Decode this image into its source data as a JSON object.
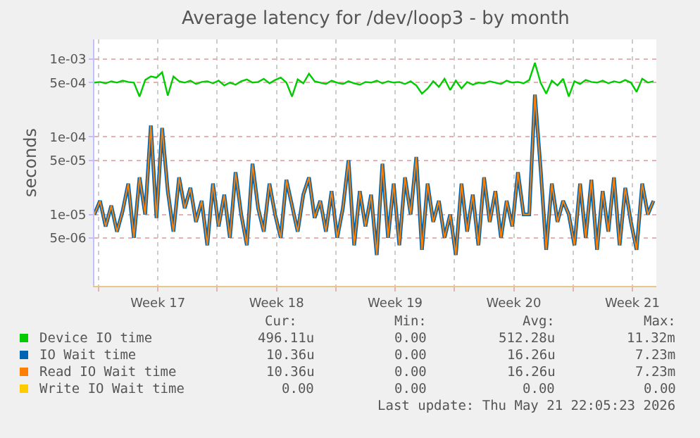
{
  "chart_data": {
    "type": "line",
    "title": "Average latency for /dev/loop3 - by month",
    "ylabel": "seconds",
    "log": "y",
    "grid": true,
    "legend": "bottom",
    "marker": "none",
    "line_style": "solid",
    "xlim": [
      "2026-04-19T18:00",
      "2026-05-22T22:00"
    ],
    "xticks": [
      {
        "value": "2026-04-20T00:00",
        "label": null
      },
      {
        "value": "2026-04-23T12:00",
        "label": "Week 17"
      },
      {
        "value": "2026-04-27T00:00",
        "label": null
      },
      {
        "value": "2026-04-30T12:00",
        "label": "Week 18"
      },
      {
        "value": "2026-05-04T00:00",
        "label": null
      },
      {
        "value": "2026-05-07T12:00",
        "label": "Week 19"
      },
      {
        "value": "2026-05-11T00:00",
        "label": null
      },
      {
        "value": "2026-05-14T12:00",
        "label": "Week 20"
      },
      {
        "value": "2026-05-18T00:00",
        "label": null
      },
      {
        "value": "2026-05-21T12:00",
        "label": "Week 21"
      }
    ],
    "ylim": [
      1.2e-06,
      0.0018
    ],
    "yticks": [
      {
        "value": 5e-06,
        "label": "5e-06"
      },
      {
        "value": 1e-05,
        "label": "1e-05"
      },
      {
        "value": 5e-05,
        "label": "5e-05"
      },
      {
        "value": 0.0001,
        "label": "1e-04"
      },
      {
        "value": 0.0005,
        "label": "5e-04"
      },
      {
        "value": 0.001,
        "label": "1e-03"
      }
    ],
    "x": [
      "2026-04-19T18:00",
      "2026-04-20T02:00",
      "2026-04-20T10:00",
      "2026-04-20T18:00",
      "2026-04-21T02:00",
      "2026-04-21T10:00",
      "2026-04-21T18:00",
      "2026-04-22T02:00",
      "2026-04-22T10:00",
      "2026-04-22T18:00",
      "2026-04-23T02:00",
      "2026-04-23T10:00",
      "2026-04-23T18:00",
      "2026-04-24T02:00",
      "2026-04-24T10:00",
      "2026-04-24T18:00",
      "2026-04-25T02:00",
      "2026-04-25T10:00",
      "2026-04-25T18:00",
      "2026-04-26T02:00",
      "2026-04-26T10:00",
      "2026-04-26T18:00",
      "2026-04-27T02:00",
      "2026-04-27T10:00",
      "2026-04-27T18:00",
      "2026-04-28T02:00",
      "2026-04-28T10:00",
      "2026-04-28T18:00",
      "2026-04-29T02:00",
      "2026-04-29T10:00",
      "2026-04-29T18:00",
      "2026-04-30T02:00",
      "2026-04-30T10:00",
      "2026-04-30T18:00",
      "2026-05-01T02:00",
      "2026-05-01T10:00",
      "2026-05-01T18:00",
      "2026-05-02T02:00",
      "2026-05-02T10:00",
      "2026-05-02T18:00",
      "2026-05-03T02:00",
      "2026-05-03T10:00",
      "2026-05-03T18:00",
      "2026-05-04T02:00",
      "2026-05-04T10:00",
      "2026-05-04T18:00",
      "2026-05-05T02:00",
      "2026-05-05T10:00",
      "2026-05-05T18:00",
      "2026-05-06T02:00",
      "2026-05-06T10:00",
      "2026-05-06T18:00",
      "2026-05-07T02:00",
      "2026-05-07T10:00",
      "2026-05-07T18:00",
      "2026-05-08T02:00",
      "2026-05-08T10:00",
      "2026-05-08T18:00",
      "2026-05-09T02:00",
      "2026-05-09T10:00",
      "2026-05-09T18:00",
      "2026-05-10T02:00",
      "2026-05-10T10:00",
      "2026-05-10T18:00",
      "2026-05-11T02:00",
      "2026-05-11T10:00",
      "2026-05-11T18:00",
      "2026-05-12T02:00",
      "2026-05-12T10:00",
      "2026-05-12T18:00",
      "2026-05-13T02:00",
      "2026-05-13T10:00",
      "2026-05-13T18:00",
      "2026-05-14T02:00",
      "2026-05-14T10:00",
      "2026-05-14T18:00",
      "2026-05-15T02:00",
      "2026-05-15T10:00",
      "2026-05-15T18:00",
      "2026-05-16T02:00",
      "2026-05-16T10:00",
      "2026-05-16T18:00",
      "2026-05-17T02:00",
      "2026-05-17T10:00",
      "2026-05-17T18:00",
      "2026-05-18T02:00",
      "2026-05-18T10:00",
      "2026-05-18T18:00",
      "2026-05-19T02:00",
      "2026-05-19T10:00",
      "2026-05-19T18:00",
      "2026-05-20T02:00",
      "2026-05-20T10:00",
      "2026-05-20T18:00",
      "2026-05-21T02:00",
      "2026-05-21T10:00",
      "2026-05-21T18:00",
      "2026-05-22T02:00",
      "2026-05-22T10:00",
      "2026-05-22T18:00"
    ],
    "series": [
      {
        "name": "Device IO time",
        "color": "#00cc00",
        "values": [
          0.0005,
          0.00051,
          0.00049,
          0.00052,
          0.0005,
          0.00053,
          0.00051,
          0.0005,
          0.00033,
          0.00054,
          0.0006,
          0.00058,
          0.00068,
          0.00034,
          0.0006,
          0.00052,
          0.0005,
          0.00053,
          0.00048,
          0.00051,
          0.00052,
          0.00049,
          0.00053,
          0.00046,
          0.0005,
          0.00047,
          0.00052,
          0.00055,
          0.0005,
          0.00051,
          0.00056,
          0.00049,
          0.00054,
          0.00058,
          0.0005,
          0.00033,
          0.00055,
          0.00049,
          0.00065,
          0.00052,
          0.0005,
          0.00048,
          0.00053,
          0.0005,
          0.00048,
          0.00052,
          0.00049,
          0.00047,
          0.00051,
          0.0005,
          0.00053,
          0.00049,
          0.00052,
          0.0005,
          0.00051,
          0.00048,
          0.00052,
          0.00046,
          0.00036,
          0.00042,
          0.00052,
          0.00044,
          0.00056,
          0.0004,
          0.00053,
          0.00042,
          0.00051,
          0.00047,
          0.0005,
          0.00049,
          0.00052,
          0.0005,
          0.00048,
          0.00053,
          0.0005,
          0.00051,
          0.00049,
          0.00054,
          0.0009,
          0.0005,
          0.00036,
          0.00053,
          0.00046,
          0.00056,
          0.00033,
          0.00052,
          0.00048,
          0.00054,
          0.00051,
          0.0005,
          0.00053,
          0.00049,
          0.00052,
          0.0005,
          0.00054,
          0.0005,
          0.00038,
          0.00056,
          0.0005,
          0.00052
        ]
      },
      {
        "name": "IO Wait time",
        "color": "#0066b3",
        "values": [
          1e-05,
          1.5e-05,
          7e-06,
          1.3e-05,
          6e-06,
          1.1e-05,
          2.5e-05,
          5e-06,
          3e-05,
          1e-05,
          0.00014,
          9e-06,
          0.00013,
          2e-05,
          6e-06,
          3e-05,
          1.2e-05,
          2.2e-05,
          8e-06,
          1.5e-05,
          4e-06,
          2.5e-05,
          7e-06,
          1.8e-05,
          5e-06,
          3.5e-05,
          1e-05,
          4e-06,
          4.5e-05,
          1.2e-05,
          6e-06,
          2.5e-05,
          1e-05,
          5e-06,
          2.8e-05,
          1.3e-05,
          6e-06,
          1.8e-05,
          3e-05,
          9e-06,
          1.5e-05,
          6e-06,
          2e-05,
          5e-06,
          1.2e-05,
          5e-05,
          4e-06,
          2e-05,
          7e-06,
          1.8e-05,
          3e-06,
          4.5e-05,
          5e-06,
          2.5e-05,
          4e-06,
          3e-05,
          1e-05,
          5.5e-05,
          3.5e-06,
          2.5e-05,
          8e-06,
          1.5e-05,
          5e-06,
          1e-05,
          3e-06,
          2.5e-05,
          6e-06,
          1.8e-05,
          4e-06,
          3e-05,
          8e-06,
          2e-05,
          5e-06,
          1.5e-05,
          7e-06,
          3.5e-05,
          1e-05,
          1e-05,
          0.00035,
          4e-05,
          3.5e-06,
          2.5e-05,
          8e-06,
          1.5e-05,
          1e-05,
          4e-06,
          2.5e-05,
          5e-06,
          2.8e-05,
          3.5e-06,
          2e-05,
          6e-06,
          3e-05,
          4e-06,
          2.2e-05,
          8e-06,
          3.5e-06,
          2.5e-05,
          1e-05,
          1.5e-05
        ]
      },
      {
        "name": "Read IO Wait time",
        "color": "#ff8000",
        "values": [
          1e-05,
          1.5e-05,
          7e-06,
          1.3e-05,
          6e-06,
          1.1e-05,
          2.5e-05,
          5e-06,
          3e-05,
          1e-05,
          0.00014,
          9e-06,
          0.00013,
          2e-05,
          6e-06,
          3e-05,
          1.2e-05,
          2.2e-05,
          8e-06,
          1.5e-05,
          4e-06,
          2.5e-05,
          7e-06,
          1.8e-05,
          5e-06,
          3.5e-05,
          1e-05,
          4e-06,
          4.5e-05,
          1.2e-05,
          6e-06,
          2.5e-05,
          1e-05,
          5e-06,
          2.8e-05,
          1.3e-05,
          6e-06,
          1.8e-05,
          3e-05,
          9e-06,
          1.5e-05,
          6e-06,
          2e-05,
          5e-06,
          1.2e-05,
          5e-05,
          4e-06,
          2e-05,
          7e-06,
          1.8e-05,
          3e-06,
          4.5e-05,
          5e-06,
          2.5e-05,
          4e-06,
          3e-05,
          1e-05,
          5.5e-05,
          3.5e-06,
          2.5e-05,
          8e-06,
          1.5e-05,
          5e-06,
          1e-05,
          3e-06,
          2.5e-05,
          6e-06,
          1.8e-05,
          4e-06,
          3e-05,
          8e-06,
          2e-05,
          5e-06,
          1.5e-05,
          7e-06,
          3.5e-05,
          1e-05,
          1e-05,
          0.00035,
          4e-05,
          3.5e-06,
          2.5e-05,
          8e-06,
          1.5e-05,
          1e-05,
          4e-06,
          2.5e-05,
          5e-06,
          2.8e-05,
          3.5e-06,
          2e-05,
          6e-06,
          3e-05,
          4e-06,
          2.2e-05,
          8e-06,
          3.5e-06,
          2.5e-05,
          1e-05,
          1.5e-05
        ]
      },
      {
        "name": "Write IO Wait time",
        "color": "#ffcc00",
        "values": [
          null,
          null,
          null,
          null,
          null,
          null,
          null,
          null,
          null,
          null,
          null,
          null,
          null,
          null,
          null,
          null,
          null,
          null,
          null,
          null,
          null,
          null,
          null,
          null,
          null,
          null,
          null,
          null,
          null,
          null,
          null,
          null,
          null,
          null,
          null,
          null,
          null,
          null,
          null,
          null,
          null,
          null,
          null,
          null,
          null,
          null,
          null,
          null,
          null,
          null,
          null,
          null,
          null,
          null,
          null,
          null,
          null,
          null,
          null,
          null,
          null,
          null,
          null,
          null,
          null,
          null,
          null,
          null,
          null,
          null,
          null,
          null,
          null,
          null,
          null,
          null,
          null,
          null,
          null,
          null,
          null,
          null,
          null,
          null,
          null,
          null,
          null,
          null,
          null,
          null,
          null,
          null,
          null,
          null,
          null,
          null,
          null,
          null,
          null,
          null
        ]
      }
    ],
    "annotations": [
      "Cur:",
      "Min:",
      "Avg:",
      "Max:",
      "496.11u",
      "0.00",
      "512.28u",
      "11.32m",
      "10.36u",
      "0.00",
      "16.26u",
      "7.23m",
      "10.36u",
      "0.00",
      "16.26u",
      "7.23m",
      "0.00",
      "0.00",
      "0.00",
      "0.00",
      "Last update: Thu May 21 22:05:23 2026"
    ]
  }
}
